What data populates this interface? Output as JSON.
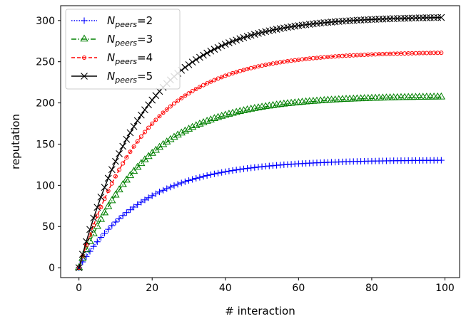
{
  "chart_data": {
    "type": "line",
    "xlabel": "# interaction",
    "ylabel": "reputation",
    "xlim": [
      -5,
      104
    ],
    "ylim": [
      -12,
      318
    ],
    "xticks": [
      0,
      20,
      40,
      60,
      80,
      100
    ],
    "yticks": [
      0,
      50,
      100,
      150,
      200,
      250,
      300
    ],
    "grid": false,
    "legend_position": "top-left",
    "x_range": [
      0,
      99
    ],
    "series": [
      {
        "name": "2",
        "label_prefix": "N",
        "label_sub": "peers",
        "asymptote": 131,
        "rate": 0.055,
        "color": "#0000ff",
        "line_style": "dotted",
        "marker": "plus",
        "values_at": {
          "0": 0,
          "20": 88,
          "40": 116,
          "60": 126,
          "80": 130,
          "99": 131
        }
      },
      {
        "name": "3",
        "label_prefix": "N",
        "label_sub": "peers",
        "asymptote": 208,
        "rate": 0.055,
        "color": "#008000",
        "line_style": "dashdot",
        "marker": "triangle",
        "values_at": {
          "0": 0,
          "20": 140,
          "40": 185,
          "60": 200,
          "80": 206,
          "99": 207
        }
      },
      {
        "name": "4",
        "label_prefix": "N",
        "label_sub": "peers",
        "asymptote": 262,
        "rate": 0.055,
        "color": "#ff0000",
        "line_style": "dashed",
        "marker": "circle",
        "values_at": {
          "0": 0,
          "20": 175,
          "40": 232,
          "60": 252,
          "80": 259,
          "99": 261
        }
      },
      {
        "name": "5",
        "label_prefix": "N",
        "label_sub": "peers",
        "asymptote": 305,
        "rate": 0.055,
        "color": "#000000",
        "line_style": "solid",
        "marker": "x",
        "values_at": {
          "0": 0,
          "20": 203,
          "40": 270,
          "60": 293,
          "80": 301,
          "99": 304
        }
      }
    ]
  }
}
